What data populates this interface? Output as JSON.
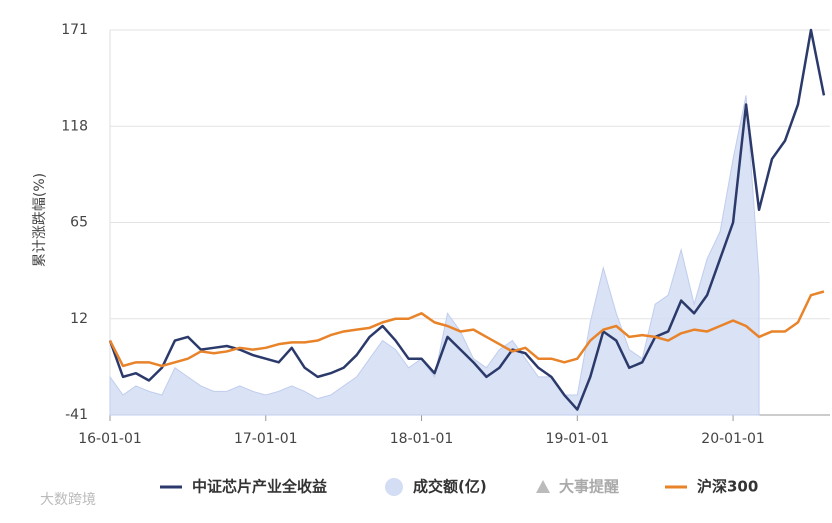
{
  "chart_data": {
    "type": "line",
    "y_label": "累计涨跌幅(%)",
    "x": [
      "16-01-01",
      "16-02-01",
      "16-03-01",
      "16-04-01",
      "16-05-01",
      "16-06-01",
      "16-07-01",
      "16-08-01",
      "16-09-01",
      "16-10-01",
      "16-11-01",
      "16-12-01",
      "17-01-01",
      "17-02-01",
      "17-03-01",
      "17-04-01",
      "17-05-01",
      "17-06-01",
      "17-07-01",
      "17-08-01",
      "17-09-01",
      "17-10-01",
      "17-11-01",
      "17-12-01",
      "18-01-01",
      "18-02-01",
      "18-03-01",
      "18-04-01",
      "18-05-01",
      "18-06-01",
      "18-07-01",
      "18-08-01",
      "18-09-01",
      "18-10-01",
      "18-11-01",
      "18-12-01",
      "19-01-01",
      "19-02-01",
      "19-03-01",
      "19-04-01",
      "19-05-01",
      "19-06-01",
      "19-07-01",
      "19-08-01",
      "19-09-01",
      "19-10-01",
      "19-11-01",
      "19-12-01",
      "20-01-01",
      "20-02-01",
      "20-03-01",
      "20-04-01",
      "20-05-01",
      "20-06-01",
      "20-07-01",
      "20-08-01"
    ],
    "series": [
      {
        "name": "成交额(亿)",
        "kind": "area",
        "color": "#d3ddf3",
        "values": [
          -20,
          -30,
          -25,
          -28,
          -30,
          -15,
          -20,
          -25,
          -28,
          -28,
          -25,
          -28,
          -30,
          -28,
          -25,
          -28,
          -32,
          -30,
          -25,
          -20,
          -10,
          0,
          -5,
          -15,
          -10,
          -20,
          15,
          5,
          -10,
          -15,
          -5,
          0,
          -10,
          -20,
          -20,
          -30,
          -30,
          10,
          40,
          15,
          -5,
          -10,
          20,
          25,
          50,
          20,
          45,
          60,
          100,
          135,
          35,
          null,
          null,
          null,
          null,
          null
        ]
      },
      {
        "name": "中证芯片产业全收益",
        "kind": "line",
        "color": "#2b3a6b",
        "values": [
          0,
          -20,
          -18,
          -22,
          -15,
          0,
          2,
          -5,
          -4,
          -3,
          -5,
          -8,
          -10,
          -12,
          -4,
          -15,
          -20,
          -18,
          -15,
          -8,
          2,
          8,
          0,
          -10,
          -10,
          -18,
          2,
          -5,
          -12,
          -20,
          -15,
          -5,
          -7,
          -15,
          -20,
          -30,
          -38,
          -20,
          5,
          0,
          -15,
          -12,
          2,
          5,
          22,
          15,
          25,
          45,
          65,
          130,
          72,
          100,
          110,
          130,
          171,
          135
        ]
      },
      {
        "name": "沪深300",
        "kind": "line",
        "color": "#e8832a",
        "values": [
          0,
          -14,
          -12,
          -12,
          -14,
          -12,
          -10,
          -6,
          -7,
          -6,
          -4,
          -5,
          -4,
          -2,
          -1,
          -1,
          0,
          3,
          5,
          6,
          7,
          10,
          12,
          12,
          15,
          10,
          8,
          5,
          6,
          2,
          -2,
          -6,
          -4,
          -10,
          -10,
          -12,
          -10,
          0,
          6,
          8,
          2,
          3,
          2,
          0,
          4,
          6,
          5,
          8,
          11,
          8,
          2,
          5,
          5,
          10,
          25,
          27
        ]
      }
    ],
    "events_legend": "大事提醒",
    "watermark": "大数跨境",
    "ylim": [
      -41,
      171
    ],
    "yticks": [
      -41,
      12,
      65,
      118,
      171
    ],
    "xlim": [
      "16-01-01",
      "20-08-15"
    ],
    "xticks": [
      "16-01-01",
      "17-01-01",
      "18-01-01",
      "19-01-01",
      "20-01-01"
    ],
    "grid": true
  }
}
